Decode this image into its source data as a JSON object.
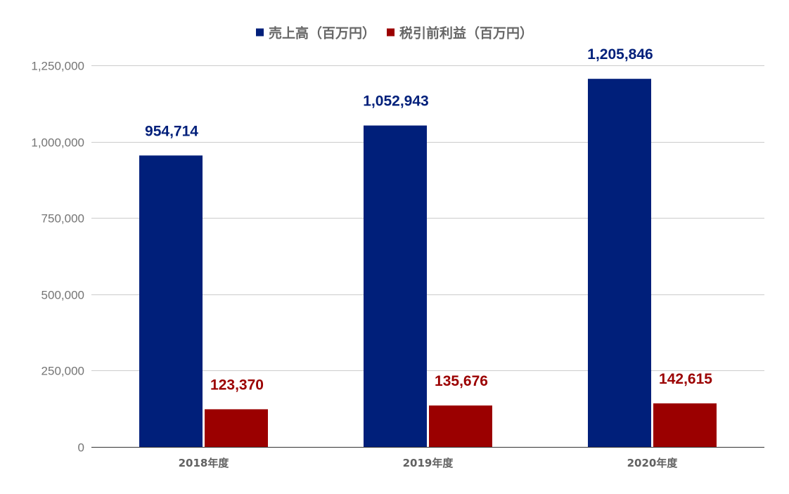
{
  "chart_data": {
    "type": "bar",
    "categories": [
      "2018年度",
      "2019年度",
      "2020年度"
    ],
    "series": [
      {
        "name": "売上高（百万円）",
        "values": [
          954714,
          1052943,
          1205846
        ],
        "labels": [
          "954,714",
          "1,052,943",
          "1,205,846"
        ],
        "color": "#001f7a"
      },
      {
        "name": "税引前利益（百万円）",
        "values": [
          123370,
          135676,
          142615
        ],
        "labels": [
          "123,370",
          "135,676",
          "142,615"
        ],
        "color": "#9b0000"
      }
    ],
    "ylim": [
      0,
      1250000
    ],
    "yticks": [
      0,
      250000,
      500000,
      750000,
      1000000,
      1250000
    ],
    "ytick_labels": [
      "0",
      "250,000",
      "500,000",
      "750,000",
      "1,000,000",
      "1,250,000"
    ],
    "legend_position": "top-center",
    "grid": true
  }
}
